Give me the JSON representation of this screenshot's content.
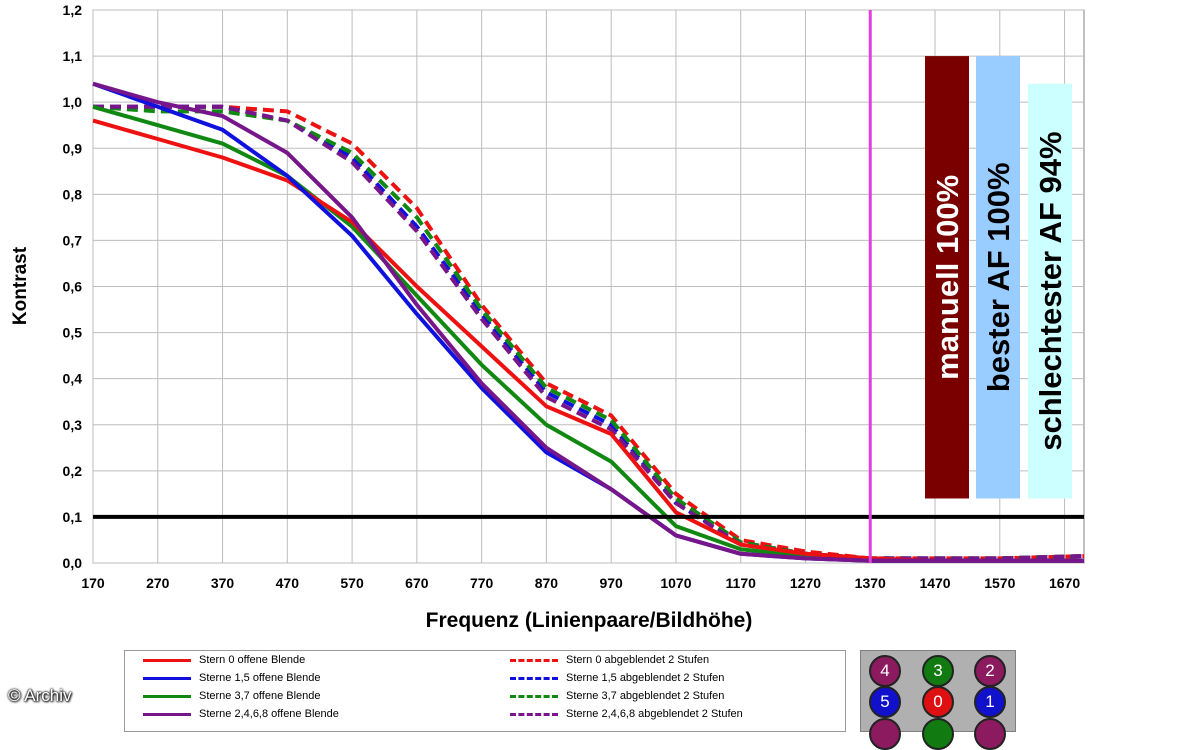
{
  "chart_data": {
    "type": "line",
    "title": "",
    "xlabel": "Frequenz (Linienpaare/Bildhöhe)",
    "ylabel": "Kontrast",
    "xlim": [
      170,
      1700
    ],
    "ylim": [
      0,
      1.2
    ],
    "x_ticks": [
      "170",
      "270",
      "370",
      "470",
      "570",
      "670",
      "770",
      "870",
      "970",
      "1070",
      "1170",
      "1270",
      "1370",
      "1470",
      "1570",
      "1670"
    ],
    "y_ticks": [
      "0,0",
      "0,1",
      "0,2",
      "0,3",
      "0,4",
      "0,5",
      "0,6",
      "0,7",
      "0,8",
      "0,9",
      "1,0",
      "1,1",
      "1,2"
    ],
    "grid": true,
    "reference_line": {
      "y": 0.1,
      "color": "#000000"
    },
    "vertical_marker": {
      "x": 1370,
      "color": "#e040e0"
    },
    "series": [
      {
        "name": "Stern 0 offene Blende",
        "color": "#ee1111",
        "dash": false,
        "x": [
          170,
          270,
          370,
          470,
          570,
          670,
          770,
          870,
          970,
          1070,
          1170,
          1270,
          1370,
          1470,
          1570,
          1700
        ],
        "y": [
          0.96,
          0.92,
          0.88,
          0.83,
          0.74,
          0.6,
          0.47,
          0.34,
          0.28,
          0.11,
          0.04,
          0.02,
          0.01,
          0.005,
          0.005,
          0.005
        ]
      },
      {
        "name": "Sterne 1,5 offene Blende",
        "color": "#1111dd",
        "dash": false,
        "x": [
          170,
          270,
          370,
          470,
          570,
          670,
          770,
          870,
          970,
          1070,
          1170,
          1270,
          1370,
          1470,
          1570,
          1700
        ],
        "y": [
          1.04,
          0.99,
          0.94,
          0.84,
          0.71,
          0.54,
          0.38,
          0.24,
          0.16,
          0.06,
          0.02,
          0.01,
          0.005,
          0.005,
          0.005,
          0.005
        ]
      },
      {
        "name": "Sterne 3,7 offene Blende",
        "color": "#118811",
        "dash": false,
        "x": [
          170,
          270,
          370,
          470,
          570,
          670,
          770,
          870,
          970,
          1070,
          1170,
          1270,
          1370,
          1470,
          1570,
          1700
        ],
        "y": [
          0.99,
          0.95,
          0.91,
          0.84,
          0.73,
          0.58,
          0.43,
          0.3,
          0.22,
          0.08,
          0.03,
          0.015,
          0.005,
          0.005,
          0.005,
          0.005
        ]
      },
      {
        "name": "Sterne 2,4,6,8 offene Blende",
        "color": "#77168a",
        "dash": false,
        "x": [
          170,
          270,
          370,
          470,
          570,
          670,
          770,
          870,
          970,
          1070,
          1170,
          1270,
          1370,
          1470,
          1570,
          1700
        ],
        "y": [
          1.04,
          1.0,
          0.97,
          0.89,
          0.75,
          0.56,
          0.39,
          0.25,
          0.16,
          0.06,
          0.02,
          0.01,
          0.005,
          0.005,
          0.005,
          0.005
        ]
      },
      {
        "name": "Stern 0 abgeblendet 2 Stufen",
        "color": "#ee1111",
        "dash": true,
        "x": [
          170,
          270,
          370,
          470,
          570,
          670,
          770,
          870,
          970,
          1070,
          1170,
          1270,
          1370,
          1470,
          1570,
          1700
        ],
        "y": [
          0.99,
          0.99,
          0.99,
          0.98,
          0.91,
          0.77,
          0.56,
          0.39,
          0.32,
          0.15,
          0.05,
          0.025,
          0.01,
          0.01,
          0.01,
          0.015
        ]
      },
      {
        "name": "Sterne 1,5 abgeblendet 2 Stufen",
        "color": "#1111dd",
        "dash": true,
        "x": [
          170,
          270,
          370,
          470,
          570,
          670,
          770,
          870,
          970,
          1070,
          1170,
          1270,
          1370,
          1470,
          1570,
          1700
        ],
        "y": [
          0.99,
          0.99,
          0.99,
          0.96,
          0.88,
          0.73,
          0.54,
          0.37,
          0.3,
          0.13,
          0.045,
          0.02,
          0.01,
          0.01,
          0.01,
          0.015
        ]
      },
      {
        "name": "Sterne 3,7 abgeblendet 2 Stufen",
        "color": "#118811",
        "dash": true,
        "x": [
          170,
          270,
          370,
          470,
          570,
          670,
          770,
          870,
          970,
          1070,
          1170,
          1270,
          1370,
          1470,
          1570,
          1700
        ],
        "y": [
          0.99,
          0.98,
          0.98,
          0.96,
          0.89,
          0.75,
          0.55,
          0.38,
          0.31,
          0.14,
          0.045,
          0.02,
          0.01,
          0.01,
          0.01,
          0.015
        ]
      },
      {
        "name": "Sterne 2,4,6,8 abgeblendet 2 Stufen",
        "color": "#77168a",
        "dash": true,
        "x": [
          170,
          270,
          370,
          470,
          570,
          670,
          770,
          870,
          970,
          1070,
          1170,
          1270,
          1370,
          1470,
          1570,
          1700
        ],
        "y": [
          0.99,
          0.99,
          0.99,
          0.96,
          0.87,
          0.72,
          0.53,
          0.36,
          0.29,
          0.13,
          0.04,
          0.02,
          0.01,
          0.01,
          0.01,
          0.015
        ]
      }
    ],
    "bars": [
      {
        "label": "manuell 100%",
        "value": 1.1,
        "color": "#7a0000",
        "text_color": "#ffffff"
      },
      {
        "label": "bester AF 100%",
        "value": 1.1,
        "color": "#99ccff",
        "text_color": "#000000"
      },
      {
        "label": "schlechtester AF 94%",
        "value": 1.04,
        "color": "#ccffff",
        "text_color": "#000000"
      }
    ]
  },
  "stars": [
    {
      "label": "4",
      "color": "#8b1a5e"
    },
    {
      "label": "3",
      "color": "#117a11"
    },
    {
      "label": "2",
      "color": "#8b1a5e"
    },
    {
      "label": "5",
      "color": "#1111cc"
    },
    {
      "label": "0",
      "color": "#dd1111"
    },
    {
      "label": "1",
      "color": "#1111cc"
    }
  ],
  "credit": "© Archiv"
}
